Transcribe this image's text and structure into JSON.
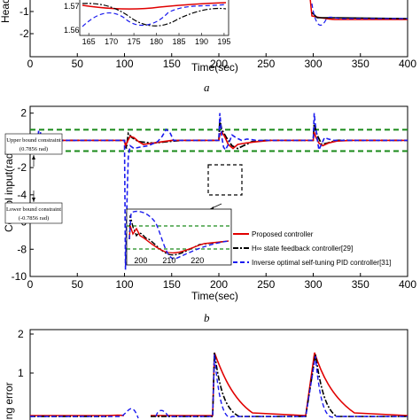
{
  "figure": {
    "panel_a_caption": "a",
    "panel_b_caption": "b"
  },
  "colors": {
    "proposed": "#e00000",
    "hinf": "#000000",
    "pid": "#1a1aee",
    "bound": "#1a8a1a"
  },
  "chart_data": [
    {
      "type": "line",
      "panel": "a",
      "xlabel": "Time(sec)",
      "ylabel": "Head",
      "xlim": [
        0,
        400
      ],
      "ylim": [
        -2.3,
        2
      ],
      "x_ticks": [
        0,
        50,
        100,
        150,
        200,
        250,
        300,
        350,
        400
      ],
      "y_ticks": [
        -1,
        -2
      ],
      "partial": "top of panel cropped",
      "inset": {
        "xlim": [
          163,
          196
        ],
        "x_ticks": [
          "165",
          "170",
          "175",
          "180",
          "185",
          "190",
          "195"
        ],
        "y_ticks": [
          "1.57",
          "1.56"
        ]
      }
    },
    {
      "type": "line",
      "panel": "b",
      "xlabel": "Time(sec)",
      "ylabel": "Control input(rad)",
      "xlim": [
        0,
        400
      ],
      "ylim": [
        -10,
        2.5
      ],
      "x_ticks": [
        0,
        50,
        100,
        150,
        200,
        250,
        300,
        350,
        400
      ],
      "y_ticks": [
        2,
        0,
        -2,
        -4,
        -6,
        -8,
        -10
      ],
      "upper_bound": 0.7856,
      "lower_bound": -0.7856,
      "annotations": {
        "upper_line1": "Upper bound constraint",
        "upper_line2": "(0.7856 rad)",
        "lower_line1": "Lower bound constraint",
        "lower_line2": "(-0.7856 rad)"
      },
      "series": [
        {
          "name": "Proposed controller",
          "x": [
            0,
            8,
            9,
            10,
            11,
            12,
            100,
            101,
            103,
            106,
            110,
            115,
            120,
            130,
            140,
            150,
            160,
            200,
            201,
            203,
            206,
            210,
            215,
            220,
            228,
            240,
            255,
            300,
            301,
            303,
            306,
            310,
            316,
            325,
            340,
            400
          ],
          "values": [
            0,
            0,
            0.4,
            -0.4,
            0.2,
            0,
            0,
            -0.4,
            -0.1,
            0.3,
            0.2,
            -0.1,
            -0.3,
            -0.2,
            -0.1,
            0,
            0,
            0,
            0.45,
            0.6,
            0.3,
            -0.3,
            -0.6,
            -0.3,
            -0.2,
            -0.1,
            0,
            0,
            0.6,
            0.2,
            -0.2,
            -0.4,
            -0.2,
            -0.05,
            0,
            0
          ]
        },
        {
          "name": "H∞ state feedback controller[29]",
          "x": [
            0,
            8,
            9,
            10,
            11,
            12,
            100,
            102,
            104,
            108,
            115,
            130,
            145,
            160,
            200,
            201,
            203,
            208,
            214,
            220,
            226,
            235,
            250,
            300,
            301,
            304,
            309,
            315,
            325,
            400
          ],
          "values": [
            0,
            0,
            0.3,
            -0.3,
            0.2,
            0,
            0,
            -0.6,
            0.5,
            0.2,
            -0.1,
            -0.2,
            -0.1,
            0,
            0,
            1.5,
            0.8,
            0.2,
            -0.4,
            -0.6,
            -0.4,
            -0.1,
            0,
            0,
            1.2,
            0.4,
            -0.3,
            -0.2,
            0,
            0
          ]
        },
        {
          "name": "Inverse optimal self-tuning PID controller[31]",
          "x": [
            0,
            8,
            9,
            10,
            11,
            12,
            13,
            100,
            101,
            102,
            103,
            104,
            106,
            110,
            116,
            125,
            135,
            140,
            144,
            148,
            152,
            160,
            200,
            201,
            202,
            203,
            205,
            207,
            210,
            214,
            218,
            224,
            230,
            240,
            300,
            301,
            302,
            304,
            306,
            308,
            312,
            316,
            322,
            330,
            340,
            400
          ],
          "values": [
            0,
            0,
            0.7,
            -0.9,
            0.6,
            -0.3,
            0,
            0,
            -9.5,
            -6.5,
            -3.5,
            -1.2,
            -0.4,
            -0.6,
            -0.5,
            -0.4,
            -0.1,
            0.3,
            0.8,
            0.6,
            0,
            0,
            0,
            2,
            1.2,
            0.3,
            -0.5,
            -0.7,
            -0.3,
            0.4,
            0.2,
            0,
            0.1,
            0,
            0,
            2,
            1.3,
            0.2,
            -0.7,
            -0.4,
            0.2,
            0.1,
            0,
            0,
            0,
            0
          ]
        }
      ],
      "inset": {
        "xlim": [
          195,
          232
        ],
        "ylim": [
          -1.6,
          1.6
        ],
        "x_ticks": [
          "200",
          "210",
          "220"
        ]
      }
    },
    {
      "type": "line",
      "panel": "c",
      "ylabel": "ing error",
      "xlim": [
        0,
        400
      ],
      "ylim": [
        0,
        2
      ],
      "y_ticks": [
        2,
        1
      ],
      "partial": "bottom of panel cropped"
    }
  ]
}
